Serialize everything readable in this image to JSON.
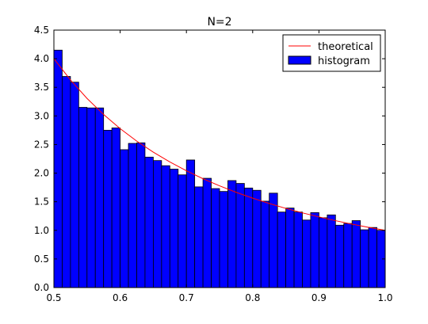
{
  "chart_data": {
    "type": "bar",
    "title": "N=2",
    "xlabel": "",
    "ylabel": "",
    "xlim": [
      0.5,
      1.0
    ],
    "ylim": [
      0.0,
      4.5
    ],
    "xticks": [
      "0.5",
      "0.6",
      "0.7",
      "0.8",
      "0.9",
      "1.0"
    ],
    "yticks": [
      "0.0",
      "0.5",
      "1.0",
      "1.5",
      "2.0",
      "2.5",
      "3.0",
      "3.5",
      "4.0",
      "4.5"
    ],
    "grid": false,
    "legend_position": "top-right",
    "series": [
      {
        "name": "histogram",
        "type": "bar",
        "color": "#0000ff",
        "edge_color": "#000000",
        "bin_start": 0.5,
        "bin_end": 1.0,
        "values": [
          4.15,
          3.69,
          3.59,
          3.15,
          3.14,
          3.14,
          2.75,
          2.79,
          2.41,
          2.52,
          2.53,
          2.28,
          2.22,
          2.13,
          2.07,
          1.97,
          2.23,
          1.76,
          1.91,
          1.73,
          1.68,
          1.87,
          1.82,
          1.74,
          1.7,
          1.51,
          1.65,
          1.32,
          1.39,
          1.32,
          1.18,
          1.31,
          1.22,
          1.27,
          1.09,
          1.12,
          1.17,
          1.01,
          1.05,
          1.0
        ]
      },
      {
        "name": "theoretical",
        "type": "line",
        "color": "#ff0000",
        "formula": "1/x^2",
        "x": [
          0.5,
          0.525,
          0.55,
          0.575,
          0.6,
          0.625,
          0.65,
          0.675,
          0.7,
          0.725,
          0.75,
          0.775,
          0.8,
          0.825,
          0.85,
          0.875,
          0.9,
          0.925,
          0.95,
          0.975,
          1.0
        ],
        "y": [
          4.0,
          3.628,
          3.306,
          3.025,
          2.778,
          2.56,
          2.367,
          2.195,
          2.041,
          1.902,
          1.778,
          1.665,
          1.563,
          1.469,
          1.384,
          1.306,
          1.235,
          1.169,
          1.108,
          1.052,
          1.0
        ]
      }
    ]
  }
}
